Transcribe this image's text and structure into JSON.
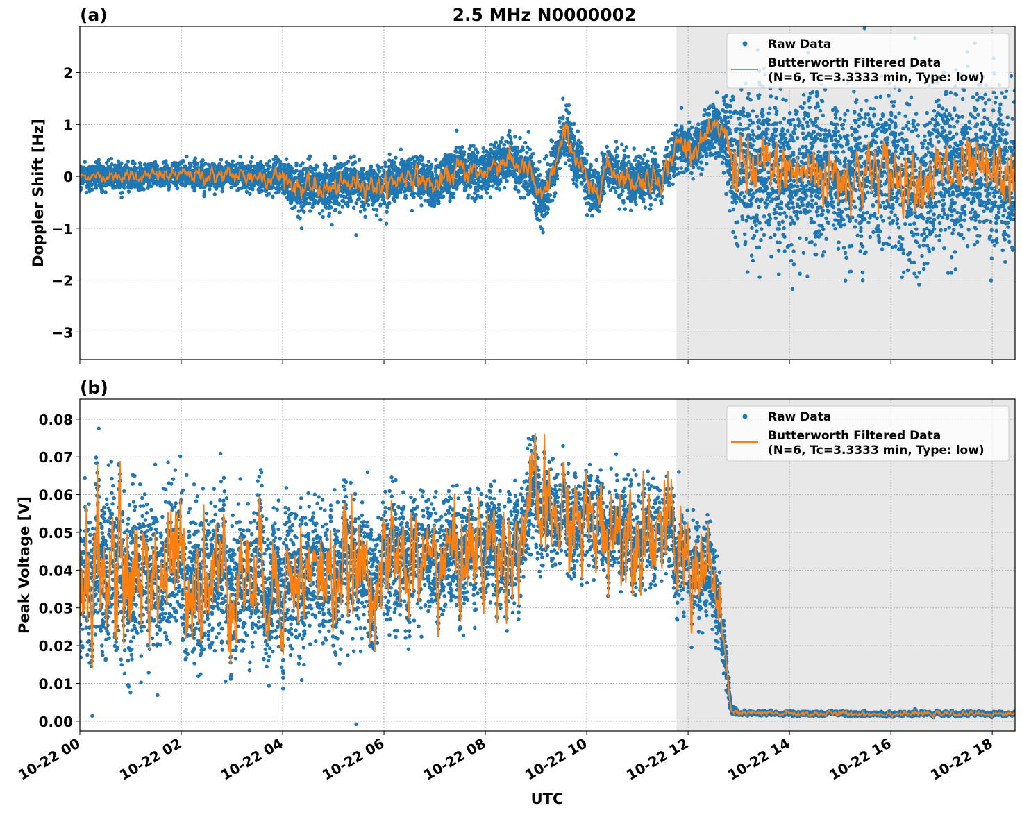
{
  "chart_data": [
    {
      "type": "scatter+line",
      "panel_label": "(a)",
      "title": "2.5 MHz N0000002",
      "xlabel": "",
      "ylabel": "Doppler Shift [Hz]",
      "xlim_hours": [
        0,
        18.45
      ],
      "ylim": [
        -3.53,
        2.89
      ],
      "yticks": [
        2,
        1,
        0,
        -1,
        -2,
        -3
      ],
      "ytick_labels": [
        "2",
        "1",
        "0",
        "−1",
        "−2",
        "−3"
      ],
      "shaded_region_hours": [
        11.77,
        18.45
      ],
      "grid": true,
      "legend": {
        "position": "top-right",
        "entries": [
          "Raw Data",
          "Butterworth Filtered Data",
          "(N=6, Tc=3.3333 min, Type: low)"
        ]
      },
      "series_anchors_note": "[hour, filtered value, raw spread]",
      "anchors": [
        [
          0,
          0,
          0.2
        ],
        [
          1,
          0,
          0.2
        ],
        [
          2,
          0.02,
          0.2
        ],
        [
          3,
          0.01,
          0.2
        ],
        [
          4,
          0,
          0.25
        ],
        [
          4.3,
          -0.2,
          0.4
        ],
        [
          5,
          -0.25,
          0.4
        ],
        [
          5.5,
          -0.1,
          0.35
        ],
        [
          6,
          -0.2,
          0.35
        ],
        [
          6.5,
          0.05,
          0.3
        ],
        [
          7,
          -0.2,
          0.35
        ],
        [
          7.5,
          0.15,
          0.35
        ],
        [
          7.9,
          0.05,
          0.4
        ],
        [
          8.4,
          0.35,
          0.4
        ],
        [
          8.9,
          0.05,
          0.4
        ],
        [
          9.1,
          -0.55,
          0.45
        ],
        [
          9.6,
          0.85,
          0.5
        ],
        [
          10.1,
          -0.4,
          0.4
        ],
        [
          10.4,
          0.2,
          0.4
        ],
        [
          10.9,
          -0.1,
          0.35
        ],
        [
          11.5,
          0,
          0.3
        ],
        [
          11.8,
          0.65,
          0.4
        ],
        [
          12.1,
          0.55,
          0.35
        ],
        [
          12.6,
          0.9,
          0.4
        ],
        [
          12.75,
          0.8,
          0.6
        ],
        [
          12.95,
          0.1,
          1.3
        ],
        [
          18.45,
          0,
          1.3
        ]
      ],
      "filtered_noise": [
        [
          0,
          0.03
        ],
        [
          4,
          0.08
        ],
        [
          12.8,
          0.1
        ],
        [
          12.95,
          0.25
        ],
        [
          18.45,
          0.25
        ]
      ]
    },
    {
      "type": "scatter+line",
      "panel_label": "(b)",
      "xlabel": "UTC",
      "ylabel": "Peak Voltage [V]",
      "xlim_hours": [
        0,
        18.45
      ],
      "ylim": [
        -0.0026,
        0.0853
      ],
      "yticks": [
        0.08,
        0.07,
        0.06,
        0.05,
        0.04,
        0.03,
        0.02,
        0.01,
        0.0
      ],
      "ytick_labels": [
        "0.08",
        "0.07",
        "0.06",
        "0.05",
        "0.04",
        "0.03",
        "0.02",
        "0.01",
        "0.00"
      ],
      "xticks_hours": [
        0,
        2,
        4,
        6,
        8,
        10,
        12,
        14,
        16,
        18
      ],
      "xtick_labels": [
        "10-22 00",
        "10-22 02",
        "10-22 04",
        "10-22 06",
        "10-22 08",
        "10-22 10",
        "10-22 12",
        "10-22 14",
        "10-22 16",
        "10-22 18"
      ],
      "shaded_region_hours": [
        11.77,
        18.45
      ],
      "grid": true,
      "legend": {
        "position": "top-right",
        "entries": [
          "Raw Data",
          "Butterworth Filtered Data",
          "(N=6, Tc=3.3333 min, Type: low)"
        ]
      },
      "anchors": [
        [
          0,
          0.04,
          0.018
        ],
        [
          2,
          0.04,
          0.018
        ],
        [
          4,
          0.038,
          0.016
        ],
        [
          6,
          0.04,
          0.014
        ],
        [
          7,
          0.043,
          0.012
        ],
        [
          8.7,
          0.048,
          0.012
        ],
        [
          8.8,
          0.056,
          0.011
        ],
        [
          10,
          0.052,
          0.01
        ],
        [
          11.5,
          0.052,
          0.009
        ],
        [
          11.8,
          0.044,
          0.009
        ],
        [
          12.4,
          0.04,
          0.01
        ],
        [
          12.6,
          0.03,
          0.008
        ],
        [
          12.85,
          0.003,
          0.001
        ],
        [
          13,
          0.002,
          0.0004
        ],
        [
          18.45,
          0.0019,
          0.0004
        ]
      ],
      "filtered_noise": [
        [
          0,
          0.009
        ],
        [
          4,
          0.006
        ],
        [
          12.4,
          0.006
        ],
        [
          12.8,
          0.0003
        ],
        [
          18.45,
          0.0002
        ]
      ]
    }
  ],
  "colors": {
    "raw": "#1f77b4",
    "filtered": "#ff7f0e",
    "shade": "#e8e8e8",
    "grid": "#b0b0b0"
  }
}
